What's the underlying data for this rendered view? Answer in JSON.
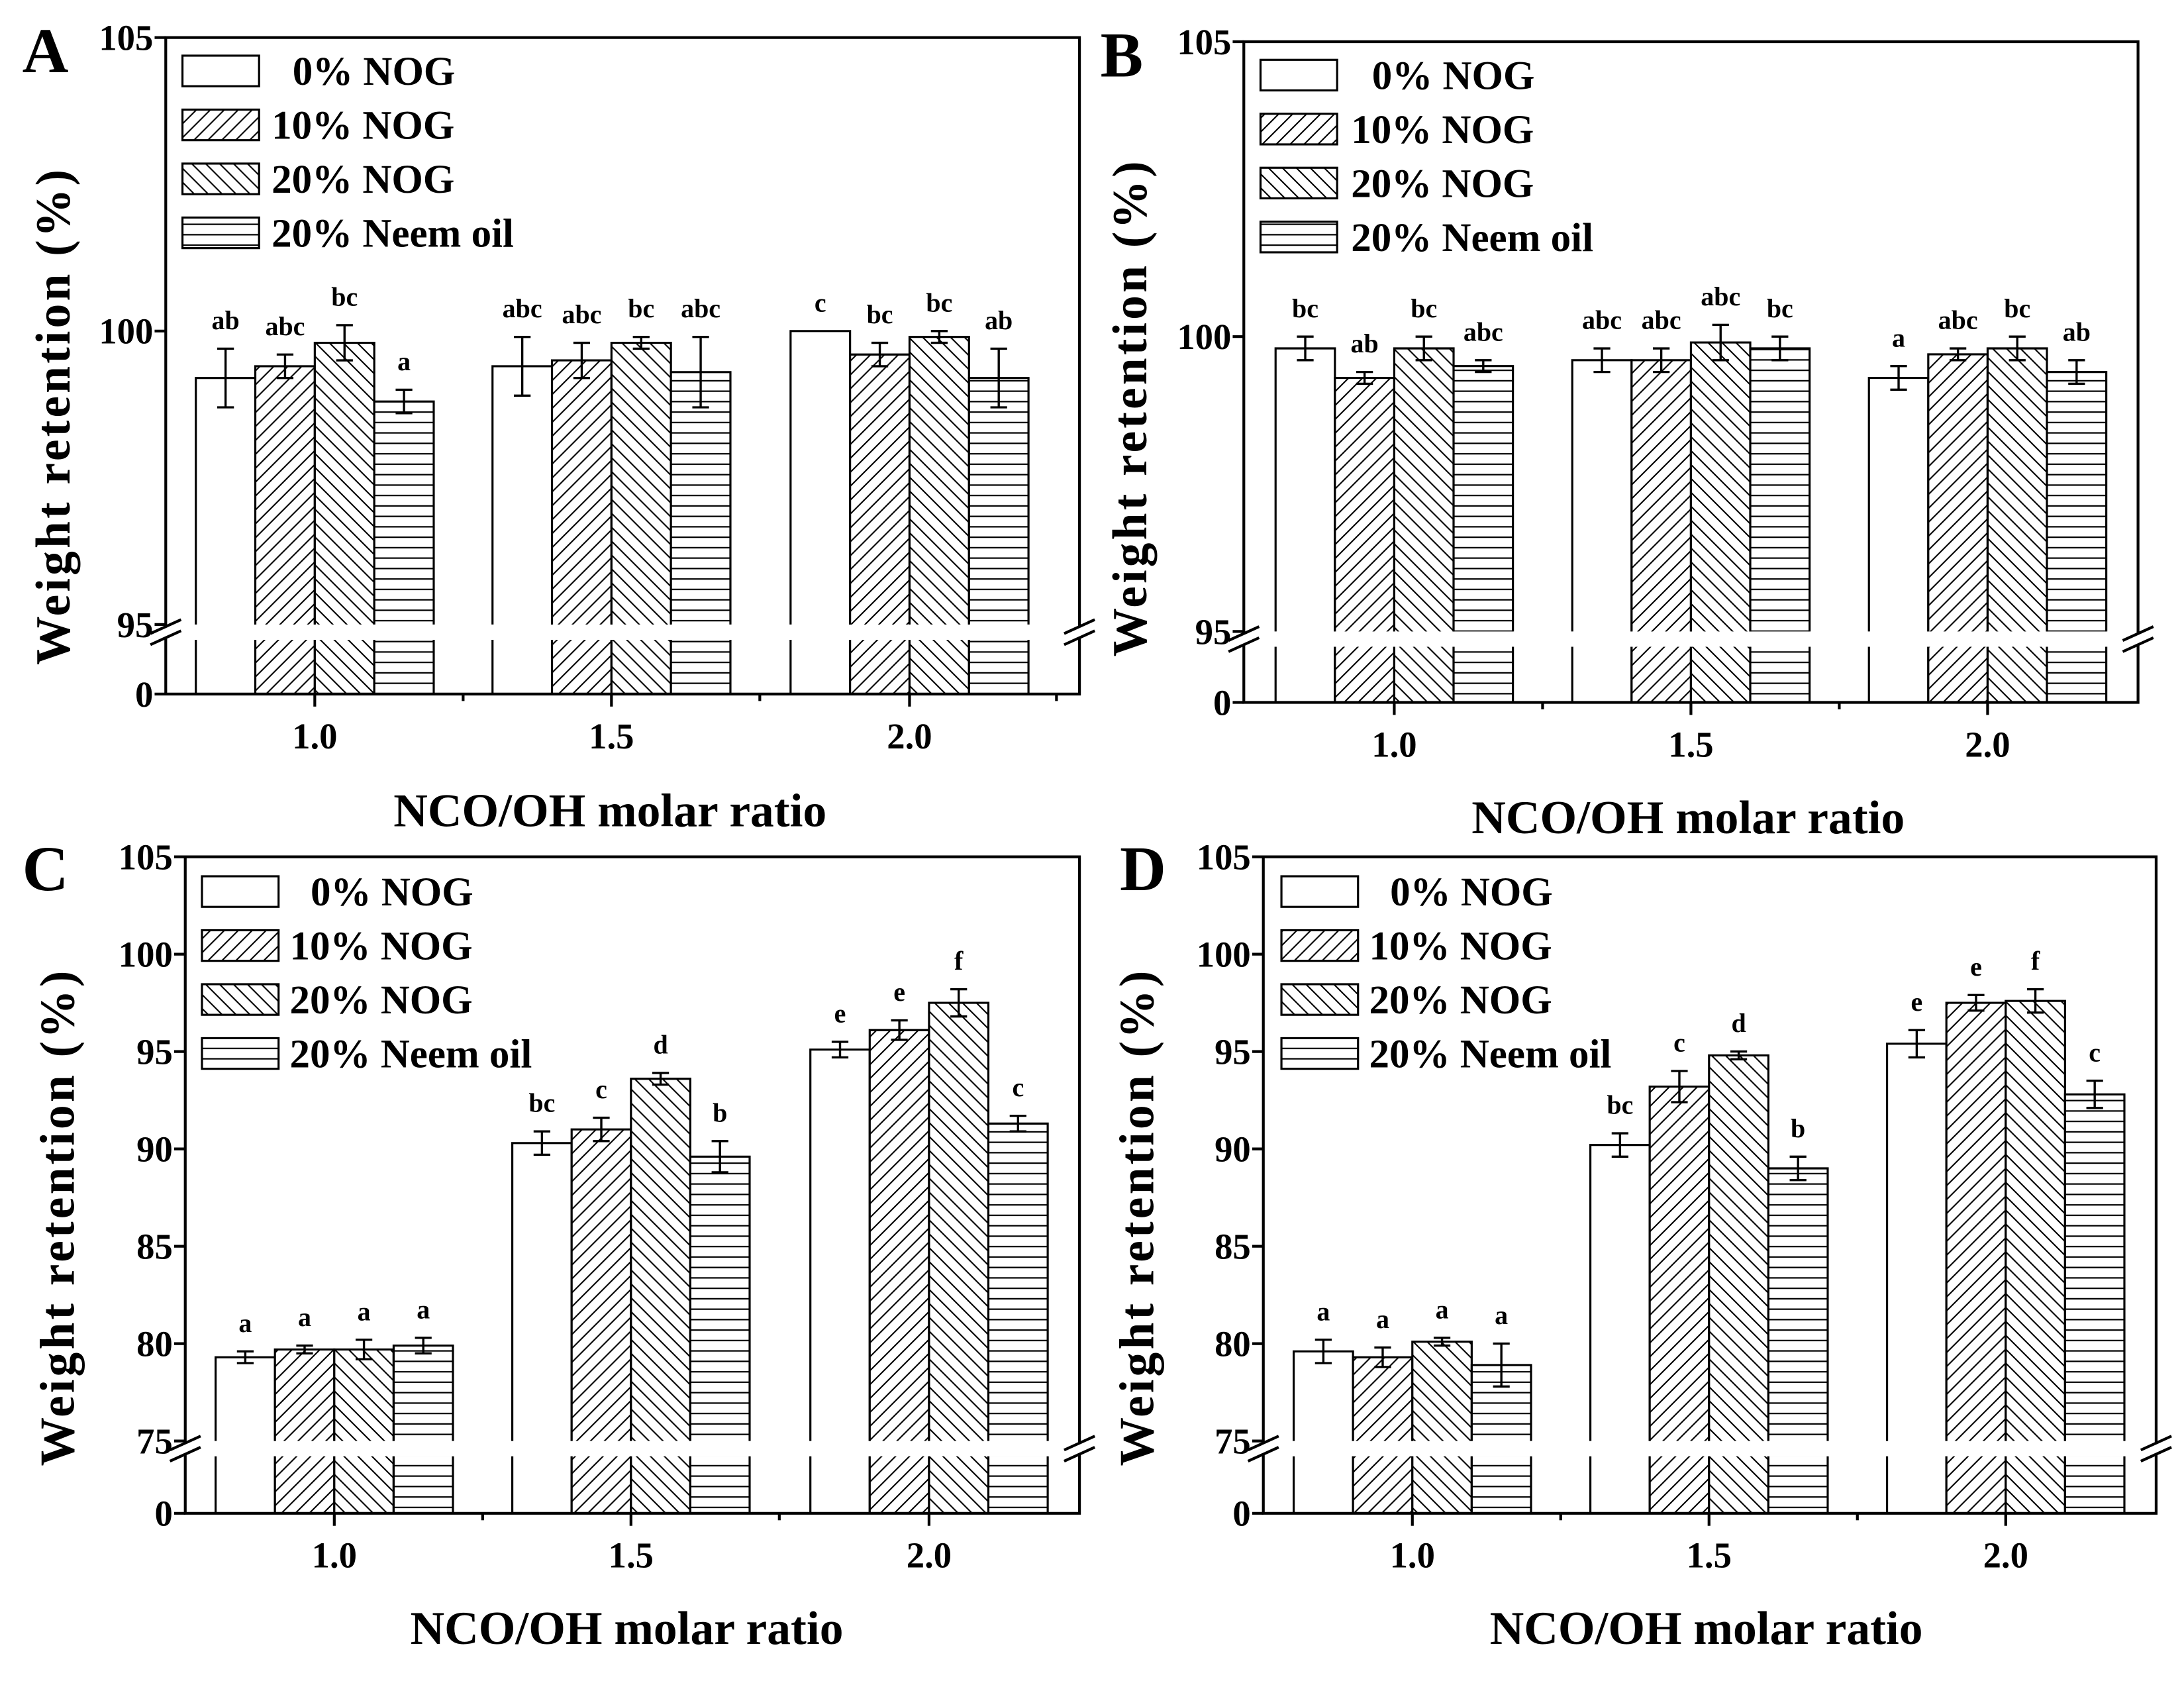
{
  "chart_data": [
    {
      "type": "bar",
      "panel": "A",
      "xlabel": "NCO/OH molar ratio",
      "ylabel": "Weight retention (%)",
      "categories": [
        "1.0",
        "1.5",
        "2.0"
      ],
      "yticks": [
        "105",
        "100",
        "95",
        "0"
      ],
      "ylim_upper": [
        95,
        105
      ],
      "ylim_lower": [
        0,
        95
      ],
      "legend": "top-left",
      "series": [
        {
          "name": "0% NOG",
          "values": [
            99.2,
            99.4,
            100.0
          ],
          "errors": [
            0.5,
            0.5,
            0.0
          ],
          "letters": [
            "ab",
            "abc",
            "c"
          ]
        },
        {
          "name": "10% NOG",
          "values": [
            99.4,
            99.5,
            99.6
          ],
          "errors": [
            0.2,
            0.3,
            0.2
          ],
          "letters": [
            "abc",
            "abc",
            "bc"
          ]
        },
        {
          "name": "20% NOG",
          "values": [
            99.8,
            99.8,
            99.9
          ],
          "errors": [
            0.3,
            0.1,
            0.1
          ],
          "letters": [
            "bc",
            "bc",
            "bc"
          ]
        },
        {
          "name": "20% Neem oil",
          "values": [
            98.8,
            99.3,
            99.2
          ],
          "errors": [
            0.2,
            0.6,
            0.5
          ],
          "letters": [
            "a",
            "abc",
            "ab"
          ]
        }
      ]
    },
    {
      "type": "bar",
      "panel": "B",
      "xlabel": "NCO/OH molar ratio",
      "ylabel": "Weight retention (%)",
      "categories": [
        "1.0",
        "1.5",
        "2.0"
      ],
      "yticks": [
        "105",
        "100",
        "95",
        "0"
      ],
      "ylim_upper": [
        95,
        105
      ],
      "ylim_lower": [
        0,
        95
      ],
      "legend": "top-left",
      "series": [
        {
          "name": "0% NOG",
          "values": [
            99.8,
            99.6,
            99.3
          ],
          "errors": [
            0.2,
            0.2,
            0.2
          ],
          "letters": [
            "bc",
            "abc",
            "a"
          ]
        },
        {
          "name": "10% NOG",
          "values": [
            99.3,
            99.6,
            99.7
          ],
          "errors": [
            0.1,
            0.2,
            0.1
          ],
          "letters": [
            "ab",
            "abc",
            "abc"
          ]
        },
        {
          "name": "20% NOG",
          "values": [
            99.8,
            99.9,
            99.8
          ],
          "errors": [
            0.2,
            0.3,
            0.2
          ],
          "letters": [
            "bc",
            "abc",
            "bc"
          ]
        },
        {
          "name": "20% Neem oil",
          "values": [
            99.5,
            99.8,
            99.4
          ],
          "errors": [
            0.1,
            0.2,
            0.2
          ],
          "letters": [
            "abc",
            "bc",
            "ab"
          ]
        }
      ]
    },
    {
      "type": "bar",
      "panel": "C",
      "xlabel": "NCO/OH molar ratio",
      "ylabel": "Weight retention (%)",
      "categories": [
        "1.0",
        "1.5",
        "2.0"
      ],
      "yticks": [
        "105",
        "100",
        "95",
        "90",
        "85",
        "80",
        "75",
        "0"
      ],
      "ylim_upper": [
        75,
        105
      ],
      "ylim_lower": [
        0,
        75
      ],
      "legend": "top-left",
      "series": [
        {
          "name": "0% NOG",
          "values": [
            79.3,
            90.3,
            95.1
          ],
          "errors": [
            0.3,
            0.6,
            0.4
          ],
          "letters": [
            "a",
            "bc",
            "e"
          ]
        },
        {
          "name": "10% NOG",
          "values": [
            79.7,
            91.0,
            96.1
          ],
          "errors": [
            0.2,
            0.6,
            0.5
          ],
          "letters": [
            "a",
            "c",
            "e"
          ]
        },
        {
          "name": "20% NOG",
          "values": [
            79.7,
            93.6,
            97.5
          ],
          "errors": [
            0.5,
            0.3,
            0.7
          ],
          "letters": [
            "a",
            "d",
            "f"
          ]
        },
        {
          "name": "20% Neem oil",
          "values": [
            79.9,
            89.6,
            91.3
          ],
          "errors": [
            0.4,
            0.8,
            0.4
          ],
          "letters": [
            "a",
            "b",
            "c"
          ]
        }
      ]
    },
    {
      "type": "bar",
      "panel": "D",
      "xlabel": "NCO/OH molar ratio",
      "ylabel": "Weight retention (%)",
      "categories": [
        "1.0",
        "1.5",
        "2.0"
      ],
      "yticks": [
        "105",
        "100",
        "95",
        "90",
        "85",
        "80",
        "75",
        "0"
      ],
      "ylim_upper": [
        75,
        105
      ],
      "ylim_lower": [
        0,
        75
      ],
      "legend": "top-left",
      "series": [
        {
          "name": "0% NOG",
          "values": [
            79.6,
            90.2,
            95.4
          ],
          "errors": [
            0.6,
            0.6,
            0.7
          ],
          "letters": [
            "a",
            "bc",
            "e"
          ]
        },
        {
          "name": "10% NOG",
          "values": [
            79.3,
            93.2,
            97.5
          ],
          "errors": [
            0.5,
            0.8,
            0.4
          ],
          "letters": [
            "a",
            "c",
            "e"
          ]
        },
        {
          "name": "20% NOG",
          "values": [
            80.1,
            94.8,
            97.6
          ],
          "errors": [
            0.2,
            0.2,
            0.6
          ],
          "letters": [
            "a",
            "d",
            "f"
          ]
        },
        {
          "name": "20% Neem oil",
          "values": [
            78.9,
            89.0,
            92.8
          ],
          "errors": [
            1.1,
            0.6,
            0.7
          ],
          "letters": [
            "a",
            "b",
            "c"
          ]
        }
      ]
    }
  ]
}
